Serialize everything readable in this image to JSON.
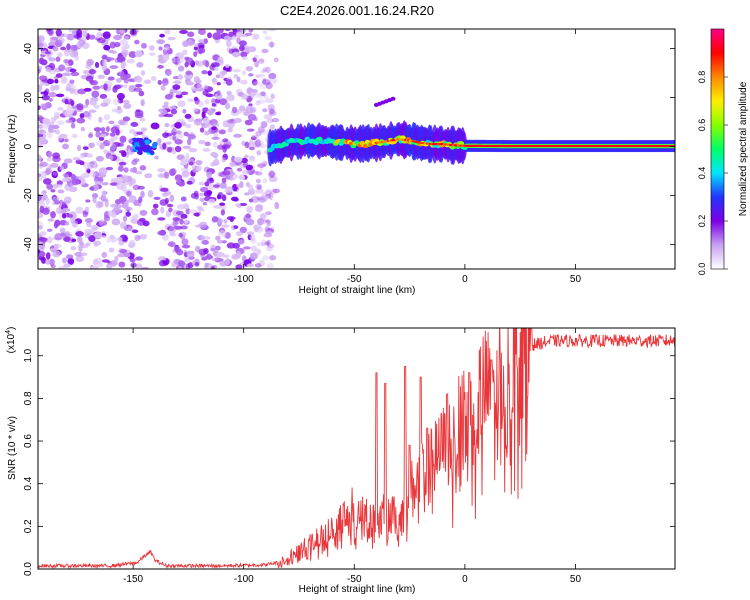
{
  "title": "C2E4.2026.001.16.24.R20",
  "chart_data": [
    {
      "type": "heatmap",
      "title": "C2E4.2026.001.16.24.R20",
      "xlabel": "Height of straight line (km)",
      "ylabel": "Frequency (Hz)",
      "xlim": [
        -193,
        95
      ],
      "ylim": [
        -50,
        48
      ],
      "xticks": [
        -150,
        -100,
        -50,
        0,
        50
      ],
      "xtick_labels": [
        "-150",
        "-100",
        "-50",
        "0",
        "50"
      ],
      "yticks": [
        -40,
        -20,
        0,
        20,
        40
      ],
      "ytick_labels": [
        "-40",
        "-20",
        "0",
        "20",
        "40"
      ],
      "colorbar": {
        "label": "Normalized spectral amplitude",
        "range": [
          0,
          1
        ],
        "ticks": [
          0.0,
          0.2,
          0.4,
          0.6,
          0.8
        ],
        "tick_labels": [
          "0.0",
          "0.2",
          "0.4",
          "0.6",
          "0.8"
        ],
        "colors": [
          "#ffffff",
          "#c9a2f2",
          "#7b00e6",
          "#2233ff",
          "#00e5ff",
          "#00ff66",
          "#88ff00",
          "#ffee00",
          "#ff8800",
          "#ff0000",
          "#ff0088"
        ]
      },
      "ridge": {
        "x": [
          -88,
          -80,
          -70,
          -60,
          -50,
          -40,
          -30,
          -25,
          -20,
          -15,
          -10,
          -5,
          0,
          20,
          50,
          95
        ],
        "y": [
          -0.5,
          1.5,
          2.5,
          2.0,
          1.0,
          1.5,
          3.0,
          2.5,
          1.5,
          1.0,
          1.0,
          0.5,
          0.3,
          0.2,
          0.2,
          0.2
        ]
      },
      "noise_region_x": [
        -193,
        -85
      ],
      "noise_gap_x": [
        -145,
        -138
      ]
    },
    {
      "type": "line",
      "xlabel": "Height of straight line (km)",
      "ylabel": "SNR (10 * v/v)",
      "exponent_label": "(x10",
      "exponent_power": "4",
      "exponent_close": ")",
      "xlim": [
        -193,
        95
      ],
      "ylim": [
        0,
        1.13
      ],
      "xticks": [
        -150,
        -100,
        -50,
        0,
        50
      ],
      "xtick_labels": [
        "-150",
        "-100",
        "-50",
        "0",
        "50"
      ],
      "yticks": [
        0.0,
        0.2,
        0.4,
        0.6,
        0.8,
        1.0
      ],
      "ytick_labels": [
        "0.0",
        "0.2",
        "0.4",
        "0.6",
        "0.8",
        "1.0"
      ],
      "series": [
        {
          "name": "SNR",
          "color": "#e8363a",
          "x": [
            -193,
            -160,
            -148,
            -145,
            -142,
            -140,
            -135,
            -110,
            -90,
            -85,
            -80,
            -75,
            -70,
            -65,
            -60,
            -55,
            -50,
            -45,
            -40,
            -35,
            -30,
            -25,
            -20,
            -15,
            -10,
            -5,
            0,
            5,
            10,
            15,
            20,
            25,
            30,
            35,
            40,
            60,
            80,
            95
          ],
          "y": [
            0.015,
            0.015,
            0.03,
            0.06,
            0.08,
            0.04,
            0.015,
            0.015,
            0.02,
            0.03,
            0.05,
            0.08,
            0.11,
            0.14,
            0.18,
            0.24,
            0.28,
            0.26,
            0.2,
            0.27,
            0.22,
            0.36,
            0.42,
            0.48,
            0.56,
            0.62,
            0.7,
            0.78,
            0.84,
            0.9,
            0.95,
            1.0,
            1.05,
            1.06,
            1.07,
            1.07,
            1.07,
            1.07
          ]
        }
      ]
    }
  ]
}
